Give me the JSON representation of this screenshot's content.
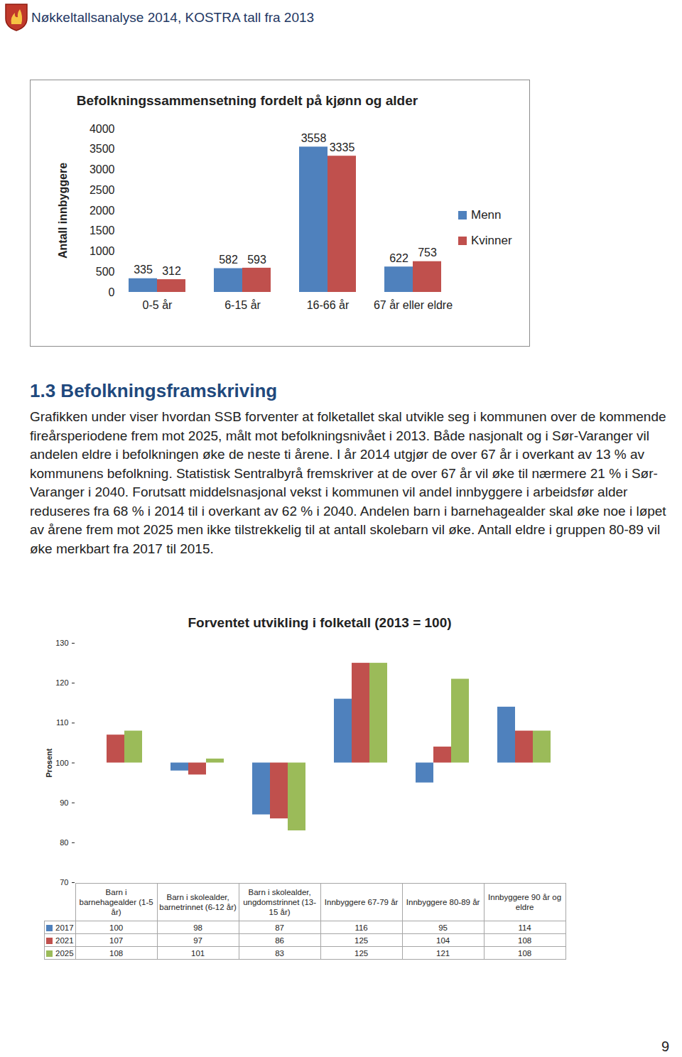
{
  "header": {
    "title": "Nøkkeltallsanalyse 2014, KOSTRA tall fra 2013"
  },
  "chart_data": [
    {
      "type": "bar",
      "title": "Befolkningssammensetning fordelt på kjønn og alder",
      "ylabel": "Antall innbyggere",
      "categories": [
        "0-5 år",
        "6-15 år",
        "16-66 år",
        "67 år eller eldre"
      ],
      "series": [
        {
          "name": "Menn",
          "color": "#4f81bd",
          "values": [
            335,
            582,
            3558,
            622
          ]
        },
        {
          "name": "Kvinner",
          "color": "#c0504d",
          "values": [
            312,
            593,
            3335,
            753
          ]
        }
      ],
      "ylim": [
        0,
        4000
      ],
      "yticks": [
        0,
        500,
        1000,
        1500,
        2000,
        2500,
        3000,
        3500,
        4000
      ],
      "grid": false,
      "legend": "right",
      "data_labels": true
    },
    {
      "type": "bar",
      "title": "Forventet utvikling i folketall (2013 = 100)",
      "ylabel": "Prosent",
      "categories": [
        "Barn i barnehagealder (1-5 år)",
        "Barn i skolealder, barnetrinnet (6-12 år)",
        "Barn i skolealder, ungdomstrinnet (13-15 år)",
        "Innbyggere 67-79 år",
        "Innbyggere 80-89 år",
        "Innbyggere 90 år og eldre"
      ],
      "series": [
        {
          "name": "2017",
          "color": "#4f81bd",
          "values": [
            100,
            98,
            87,
            116,
            95,
            114
          ]
        },
        {
          "name": "2021",
          "color": "#c0504d",
          "values": [
            107,
            97,
            86,
            125,
            104,
            108
          ]
        },
        {
          "name": "2025",
          "color": "#9bbb59",
          "values": [
            108,
            101,
            83,
            125,
            121,
            108
          ]
        }
      ],
      "baseline": 100,
      "ylim": [
        70,
        130
      ],
      "yticks": [
        70,
        80,
        90,
        100,
        110,
        120,
        130
      ],
      "grid": false,
      "data_labels": true
    }
  ],
  "section": {
    "heading": "1.3 Befolkningsframskriving",
    "text": "Grafikken under viser hvordan SSB forventer at folketallet skal utvikle seg i kommunen over de kommende fireårsperiodene frem mot 2025, målt mot befolkningsnivået i 2013. Både nasjonalt og i Sør-Varanger vil andelen eldre i befolkningen øke de neste ti årene. I år 2014 utgjør de over 67 år i overkant av 13 % av kommunens befolkning. Statistisk Sentralbyrå fremskriver at de over 67 år vil øke til nærmere 21 % i Sør-Varanger i 2040. Forutsatt middelsnasjonal vekst i kommunen vil andel innbyggere i arbeidsfør alder reduseres fra 68 % i 2014 til i overkant av 62 % i 2040. Andelen barn i barnehagealder skal øke noe i løpet av årene frem mot 2025 men ikke tilstrekkelig til at antall skolebarn vil øke. Antall eldre i gruppen 80-89 vil øke merkbart fra 2017 til 2015."
  },
  "page_number": "9"
}
